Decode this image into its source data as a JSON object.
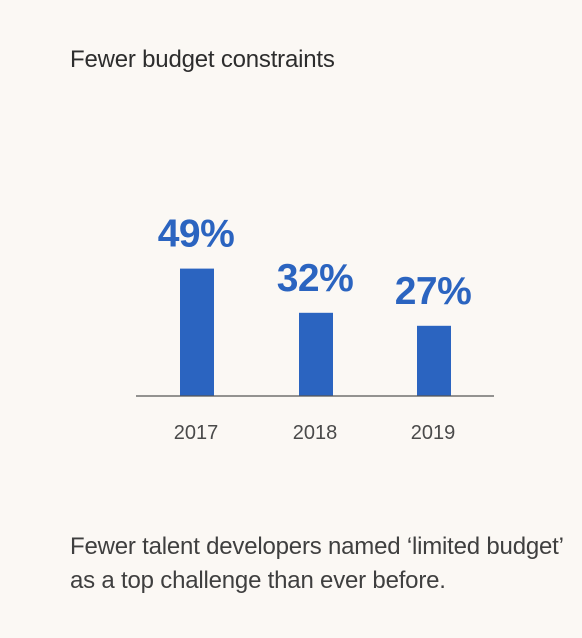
{
  "title": "Fewer budget constraints",
  "caption": "Fewer talent developers named ‘limited budget’ as a top challenge than ever before.",
  "colors": {
    "bar": "#2b64c0",
    "label": "#2b64c0",
    "axis": "#555555",
    "background": "#fbf8f4"
  },
  "chart_data": {
    "type": "bar",
    "title": "Fewer budget constraints",
    "categories": [
      "2017",
      "2018",
      "2019"
    ],
    "values": [
      49,
      32,
      27
    ],
    "data_labels": [
      "49%",
      "32%",
      "27%"
    ],
    "unit": "%",
    "xlabel": "",
    "ylabel": "",
    "ylim": [
      0,
      100
    ],
    "grid": false,
    "legend": "none"
  }
}
